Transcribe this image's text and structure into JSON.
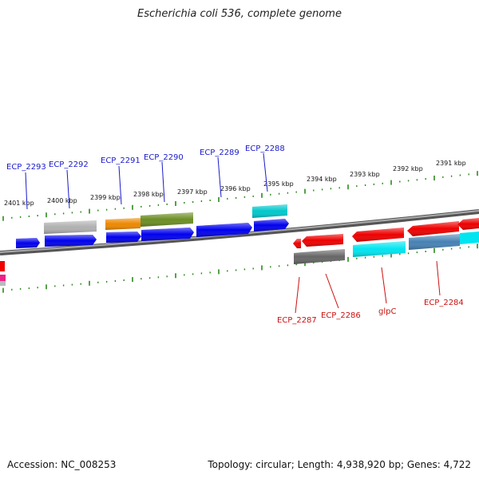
{
  "title": "Escherichia coli 536, complete genome",
  "footer": {
    "accession_label": "Accession:",
    "accession": "NC_008253",
    "topology_label": "Topology:",
    "topology": "circular",
    "length_label": "Length:",
    "length": "4,938,920 bp",
    "genes_label": "Genes:",
    "genes": "4,722"
  },
  "colors": {
    "top_label": "#1a1acc",
    "bottom_label": "#cc1111",
    "tick": "#2a8a1a",
    "backbone": "#777777"
  },
  "kbp_ticks": [
    "2401 kbp",
    "2400 kbp",
    "2399 kbp",
    "2398 kbp",
    "2397 kbp",
    "2396 kbp",
    "2395 kbp",
    "2394 kbp",
    "2393 kbp",
    "2392 kbp",
    "2391 kbp"
  ],
  "gene_labels_top": [
    "ECP_2293",
    "ECP_2292",
    "ECP_2291",
    "ECP_2290",
    "ECP_2289",
    "ECP_2288"
  ],
  "gene_labels_bottom": [
    "ECP_2287",
    "ECP_2286",
    "glpC",
    "ECP_2284"
  ]
}
